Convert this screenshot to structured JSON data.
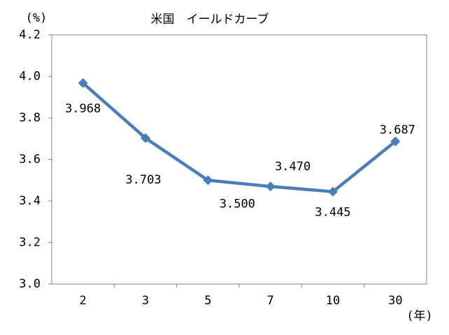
{
  "chart_data": {
    "type": "line",
    "title": "米国　イールドカーブ",
    "y_label": "(%)",
    "x_label": "(年)",
    "categories": [
      "2",
      "3",
      "5",
      "7",
      "10",
      "30"
    ],
    "series": [
      {
        "name": "米国",
        "color": "#4a7ebb",
        "values": [
          3.968,
          3.703,
          3.5,
          3.47,
          3.445,
          3.687
        ],
        "value_labels": [
          "3.968",
          "3.703",
          "3.500",
          "3.470",
          "3.445",
          "3.687"
        ]
      }
    ],
    "ylim": [
      3.0,
      4.2
    ],
    "yticks": [
      {
        "value": 3,
        "label": "3.0"
      },
      3.2,
      3.4,
      3.6,
      3.8,
      {
        "value": 4,
        "label": "4.0"
      },
      4.2
    ],
    "grid": false,
    "legend": false
  }
}
